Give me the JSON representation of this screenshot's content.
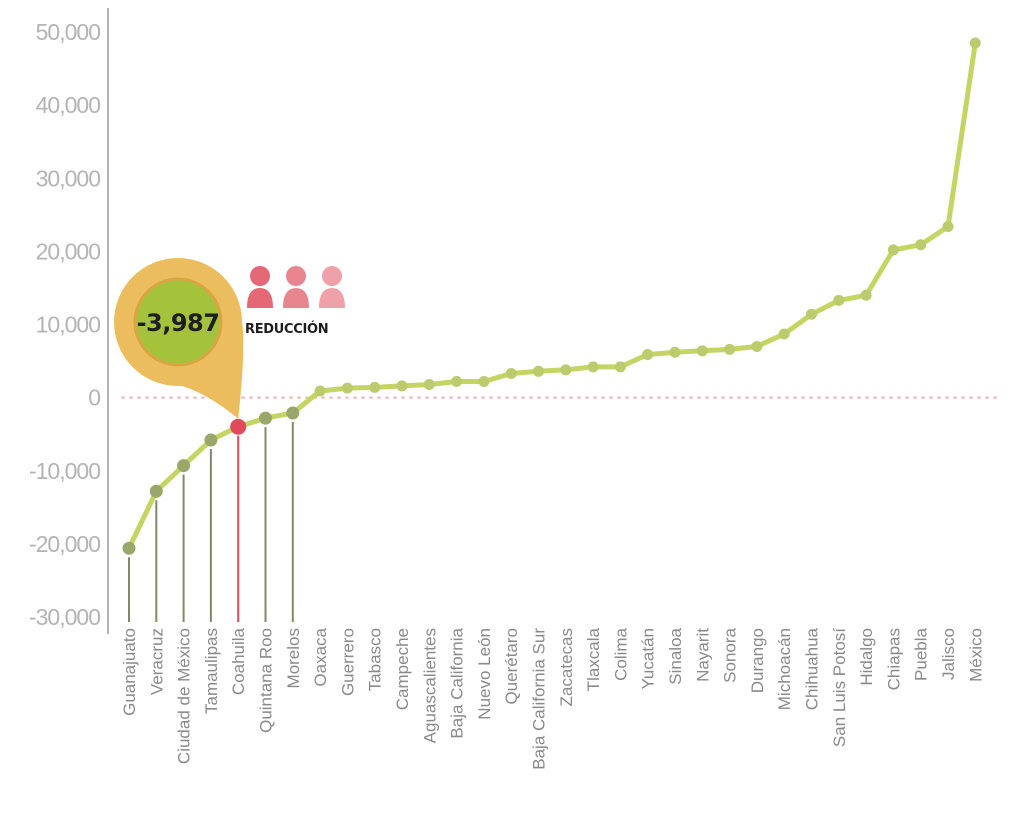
{
  "chart_data": {
    "type": "line",
    "categories": [
      "Guanajuato",
      "Veracruz",
      "Ciudad de México",
      "Tamaulipas",
      "Coahuila",
      "Quintana Roo",
      "Morelos",
      "Oaxaca",
      "Guerrero",
      "Tabasco",
      "Campeche",
      "Aguascalientes",
      "Baja California",
      "Nuevo León",
      "Querétaro",
      "Baja California Sur",
      "Zacatecas",
      "Tlaxcala",
      "Colima",
      "Yucatán",
      "Sinaloa",
      "Nayarit",
      "Sonora",
      "Durango",
      "Michoacán",
      "Chihuahua",
      "San Luis Potosí",
      "Hidalgo",
      "Chiapas",
      "Puebla",
      "Jalisco",
      "México"
    ],
    "values": [
      -20600,
      -12800,
      -9300,
      -5800,
      -3987,
      -2800,
      -2100,
      900,
      1300,
      1400,
      1600,
      1800,
      2200,
      2200,
      3300,
      3600,
      3800,
      4200,
      4200,
      5900,
      6200,
      6400,
      6600,
      7000,
      8700,
      11400,
      13300,
      14000,
      20200,
      20900,
      23400,
      48500
    ],
    "ytick_labels": [
      "50,000",
      "40,000",
      "30,000",
      "20,000",
      "10,000",
      "0",
      "-10,000",
      "-20,000",
      "-30,000"
    ],
    "ytick_values": [
      50000,
      40000,
      30000,
      20000,
      10000,
      0,
      -10000,
      -20000,
      -30000
    ],
    "ylim": [
      -30000,
      50000
    ],
    "highlight_index": 4,
    "negative_stem_indices": [
      0,
      1,
      2,
      3,
      4,
      5,
      6
    ],
    "zero_line": "dotted",
    "title": "",
    "xlabel": "",
    "ylabel": ""
  },
  "callout": {
    "value_label": "-3,987",
    "caption": "REDUCCIÓN",
    "people_icon": "person-icon"
  },
  "colors": {
    "line": "#c5d563",
    "point_positive": "#bccb6d",
    "point_negative": "#9aa76b",
    "stem": "#7e8b66",
    "highlight": "#e14a5c",
    "axis": "#9c9c9c",
    "zero_line": "#f2b5bc",
    "callout_bubble": "#ecbd5e",
    "callout_inner": "#a5c23b",
    "people": [
      "#e46876",
      "#e88690",
      "#eea1a9"
    ]
  }
}
